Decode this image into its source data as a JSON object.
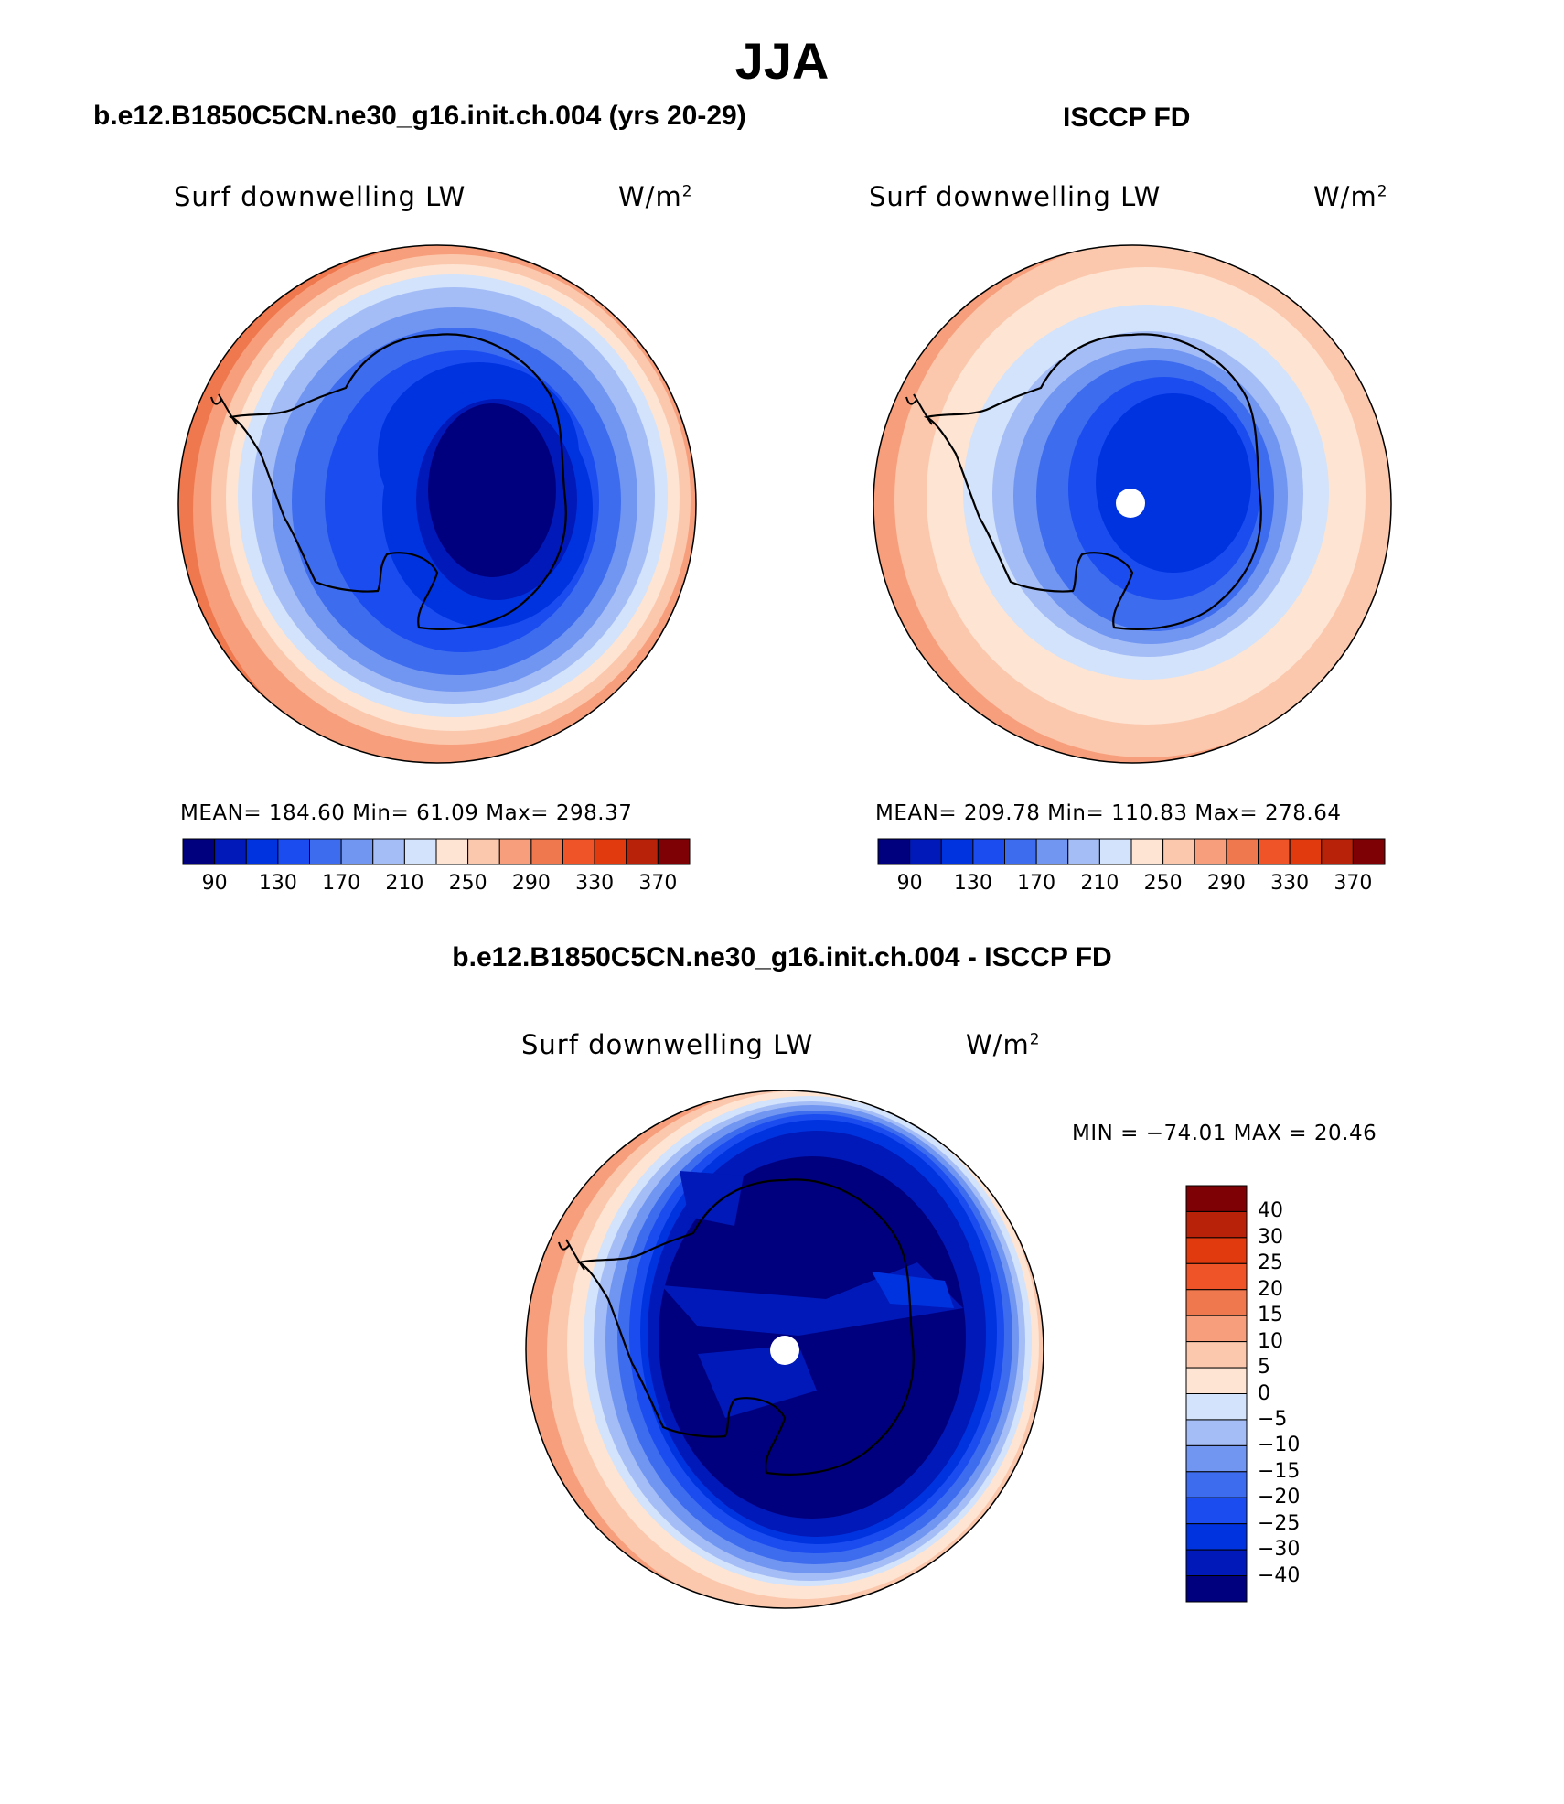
{
  "figure": {
    "season": "JJA",
    "top_left_title": "b.e12.B1850C5CN.ne30_g16.init.ch.004 (yrs 20-29)",
    "top_right_title": "ISCCP FD",
    "bottom_title": "b.e12.B1850C5CN.ne30_g16.init.ch.004 - ISCCP FD"
  },
  "panels": {
    "model": {
      "variable": "Surf downwelling LW",
      "units": "W/m",
      "units_exp": "2",
      "stats": "MEAN= 184.60   Min=  61.09   Max= 298.37"
    },
    "obs": {
      "variable": "Surf downwelling LW",
      "units": "W/m",
      "units_exp": "2",
      "stats": "MEAN= 209.78   Min= 110.83   Max= 278.64"
    },
    "diff": {
      "variable": "Surf downwelling LW",
      "units": "W/m",
      "units_exp": "2",
      "stats": "MIN = −74.01  MAX =  20.46"
    }
  },
  "colorbars": {
    "abs_colors": [
      "#00007f",
      "#0019b8",
      "#0033e0",
      "#1a4cf0",
      "#3d6cef",
      "#7196f2",
      "#a5bdf6",
      "#d2e3fb",
      "#fde4d3",
      "#fcc8ad",
      "#f79f7c",
      "#f0784e",
      "#ef5428",
      "#e13a0f",
      "#b72208",
      "#7e0205"
    ],
    "abs_ticks": [
      "90",
      "130",
      "170",
      "210",
      "250",
      "290",
      "330",
      "370"
    ],
    "diff_colors": [
      "#00007f",
      "#0019b8",
      "#0033e0",
      "#1a4cf0",
      "#3d6cef",
      "#7196f2",
      "#a5bdf6",
      "#d2e3fb",
      "#fde4d3",
      "#fcc8ad",
      "#f79f7c",
      "#f0784e",
      "#ef5428",
      "#e13a0f",
      "#b72208",
      "#7e0205"
    ],
    "diff_ticks": [
      "40",
      "30",
      "25",
      "20",
      "15",
      "10",
      "5",
      "0",
      "−5",
      "−10",
      "−15",
      "−20",
      "−25",
      "−30",
      "−40"
    ]
  }
}
